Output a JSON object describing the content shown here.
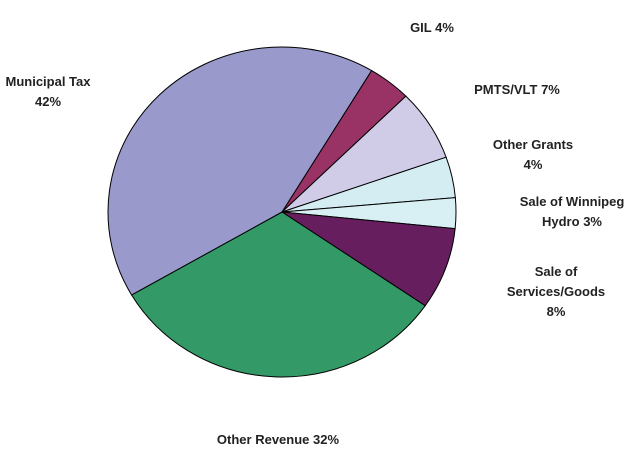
{
  "chart_data": {
    "type": "pie",
    "categories": [
      "GIL",
      "PMTS/VLT",
      "Other Grants",
      "Sale of Winnipeg Hydro",
      "Sale of Services/Goods",
      "Other Revenue",
      "Municipal Tax"
    ],
    "values": [
      4,
      7,
      4,
      3,
      8,
      32,
      42
    ],
    "value_labels": [
      "4%",
      "7%",
      "4%",
      "3%",
      "8%",
      "32%",
      "42%"
    ],
    "colors": [
      "#993366",
      "#d0cce8",
      "#d3edf2",
      "#d8f0f4",
      "#661e5e",
      "#339966",
      "#9999cc"
    ]
  }
}
